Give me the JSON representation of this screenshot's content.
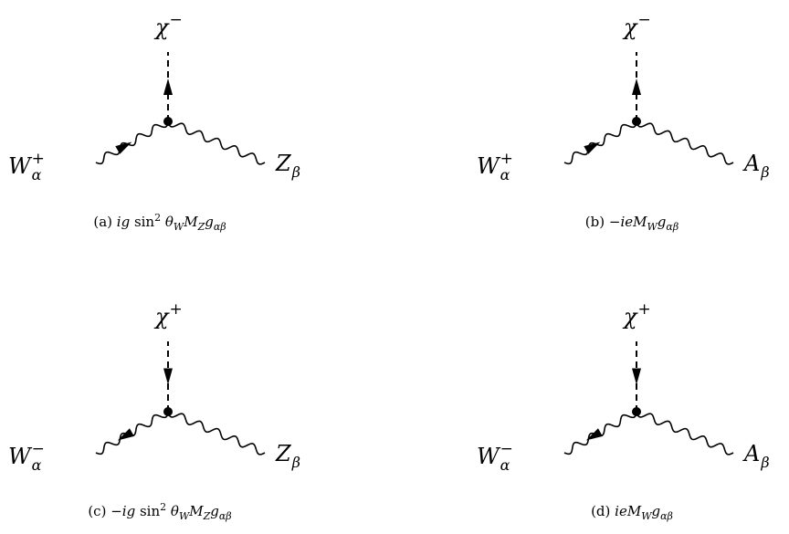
{
  "diagrams": [
    {
      "id": "a",
      "scalar": {
        "base": "χ",
        "sup": "−"
      },
      "left": {
        "base": "W",
        "sup": "+",
        "sub": "α"
      },
      "right": {
        "base": "Z",
        "sub": "β"
      },
      "scalar_arrow": "up",
      "caption": {
        "tag": "(a)",
        "parts": [
          {
            "t": "ig",
            "style": "it"
          },
          {
            "t": " sin",
            "style": "rm"
          },
          {
            "t": "2",
            "style": "sup"
          },
          {
            "t": " θ",
            "style": "it"
          },
          {
            "t": "W",
            "style": "sub-it"
          },
          {
            "t": "M",
            "style": "it"
          },
          {
            "t": "Z",
            "style": "sub-it"
          },
          {
            "t": "g",
            "style": "it"
          },
          {
            "t": "αβ",
            "style": "sub-it"
          }
        ]
      }
    },
    {
      "id": "b",
      "scalar": {
        "base": "χ",
        "sup": "−"
      },
      "left": {
        "base": "W",
        "sup": "+",
        "sub": "α"
      },
      "right": {
        "base": "A",
        "sub": "β"
      },
      "scalar_arrow": "up",
      "caption": {
        "tag": "(b)",
        "parts": [
          {
            "t": "−",
            "style": "rm"
          },
          {
            "t": "ieM",
            "style": "it"
          },
          {
            "t": "W",
            "style": "sub-it"
          },
          {
            "t": "g",
            "style": "it"
          },
          {
            "t": "αβ",
            "style": "sub-it"
          }
        ]
      }
    },
    {
      "id": "c",
      "scalar": {
        "base": "χ",
        "sup": "+"
      },
      "left": {
        "base": "W",
        "sup": "−",
        "sub": "α"
      },
      "right": {
        "base": "Z",
        "sub": "β"
      },
      "scalar_arrow": "down",
      "caption": {
        "tag": "(c)",
        "parts": [
          {
            "t": "−",
            "style": "rm"
          },
          {
            "t": "ig",
            "style": "it"
          },
          {
            "t": " sin",
            "style": "rm"
          },
          {
            "t": "2",
            "style": "sup"
          },
          {
            "t": " θ",
            "style": "it"
          },
          {
            "t": "W",
            "style": "sub-it"
          },
          {
            "t": "M",
            "style": "it"
          },
          {
            "t": "Z",
            "style": "sub-it"
          },
          {
            "t": "g",
            "style": "it"
          },
          {
            "t": "αβ",
            "style": "sub-it"
          }
        ]
      }
    },
    {
      "id": "d",
      "scalar": {
        "base": "χ",
        "sup": "+"
      },
      "left": {
        "base": "W",
        "sup": "−",
        "sub": "α"
      },
      "right": {
        "base": "A",
        "sub": "β"
      },
      "scalar_arrow": "down",
      "caption": {
        "tag": "(d)",
        "parts": [
          {
            "t": "ieM",
            "style": "it"
          },
          {
            "t": "W",
            "style": "sub-it"
          },
          {
            "t": "g",
            "style": "it"
          },
          {
            "t": "αβ",
            "style": "sub-it"
          }
        ]
      }
    }
  ],
  "colors": {
    "ink": "#000000",
    "background": "#ffffff"
  }
}
